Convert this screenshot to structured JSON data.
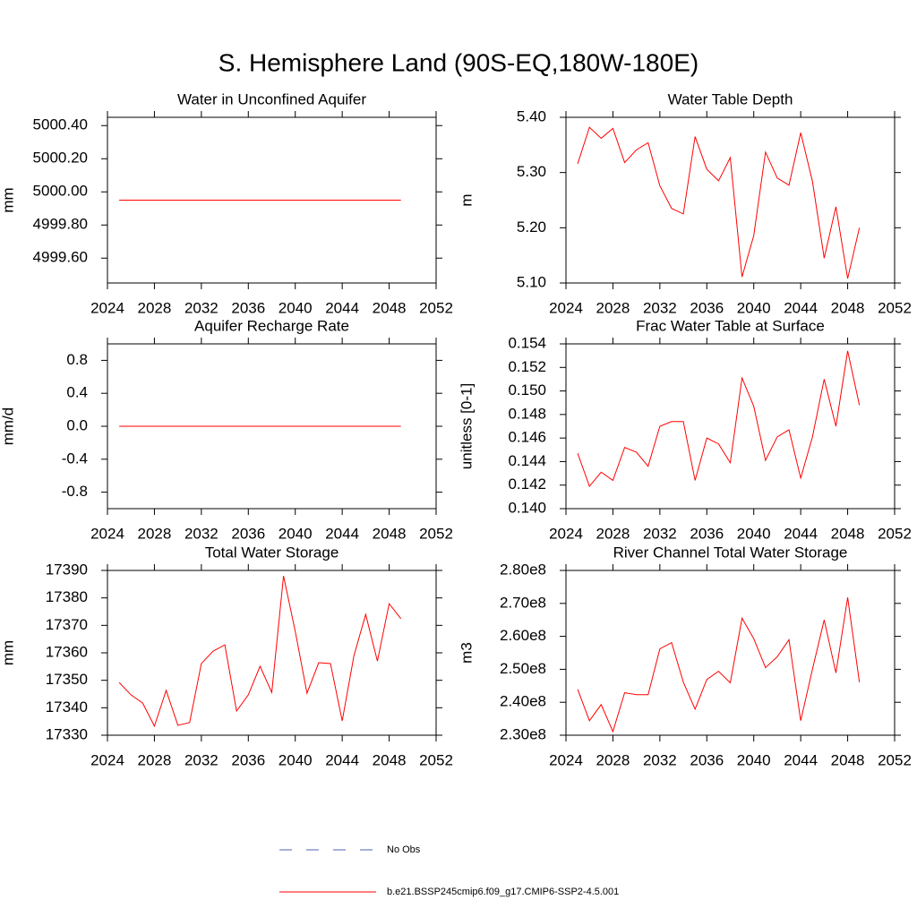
{
  "title": "S. Hemisphere Land (90S-EQ,180W-180E)",
  "legend": [
    {
      "name": "No Obs",
      "color": "#4f5fb0",
      "dashed": true
    },
    {
      "name": "b.e21.BSSP245cmip6.f09_g17.CMIP6-SSP2-4.5.001",
      "color": "#ff0000",
      "dashed": false
    }
  ],
  "chart_data": [
    {
      "type": "line",
      "title": "Water in Unconfined Aquifer",
      "y_label": "mm",
      "x": [
        2025,
        2026,
        2027,
        2028,
        2029,
        2030,
        2031,
        2032,
        2033,
        2034,
        2035,
        2036,
        2037,
        2038,
        2039,
        2040,
        2041,
        2042,
        2043,
        2044,
        2045,
        2046,
        2047,
        2048,
        2049
      ],
      "series": [
        {
          "color": "#ff0000",
          "values": [
            4999.95,
            4999.95,
            4999.95,
            4999.95,
            4999.95,
            4999.95,
            4999.95,
            4999.95,
            4999.95,
            4999.95,
            4999.95,
            4999.95,
            4999.95,
            4999.95,
            4999.95,
            4999.95,
            4999.95,
            4999.95,
            4999.95,
            4999.95,
            4999.95,
            4999.95,
            4999.95,
            4999.95,
            4999.95
          ]
        }
      ],
      "xlim": [
        2024,
        2052
      ],
      "xticks": [
        2024,
        2028,
        2032,
        2036,
        2040,
        2044,
        2048,
        2052
      ],
      "ylim": [
        4999.45,
        5000.45
      ],
      "yticks": [
        {
          "value": 4999.6,
          "label": "4999.60"
        },
        {
          "value": 4999.8,
          "label": "4999.80"
        },
        {
          "value": 5000.0,
          "label": "5000.00"
        },
        {
          "value": 5000.2,
          "label": "5000.20"
        },
        {
          "value": 5000.4,
          "label": "5000.40"
        }
      ]
    },
    {
      "type": "line",
      "title": "Water Table Depth",
      "y_label": "m",
      "x": [
        2025,
        2026,
        2027,
        2028,
        2029,
        2030,
        2031,
        2032,
        2033,
        2034,
        2035,
        2036,
        2037,
        2038,
        2039,
        2040,
        2041,
        2042,
        2043,
        2044,
        2045,
        2046,
        2047,
        2048,
        2049
      ],
      "series": [
        {
          "color": "#ff0000",
          "values": [
            5.316,
            5.382,
            5.362,
            5.38,
            5.318,
            5.341,
            5.354,
            5.276,
            5.235,
            5.225,
            5.365,
            5.306,
            5.285,
            5.327,
            5.111,
            5.186,
            5.337,
            5.29,
            5.277,
            5.372,
            5.284,
            5.145,
            5.238,
            5.108,
            5.2
          ]
        }
      ],
      "xlim": [
        2024,
        2052
      ],
      "xticks": [
        2024,
        2028,
        2032,
        2036,
        2040,
        2044,
        2048,
        2052
      ],
      "ylim": [
        5.1,
        5.4
      ],
      "yticks": [
        {
          "value": 5.1,
          "label": "5.10"
        },
        {
          "value": 5.2,
          "label": "5.20"
        },
        {
          "value": 5.3,
          "label": "5.30"
        },
        {
          "value": 5.4,
          "label": "5.40"
        }
      ]
    },
    {
      "type": "line",
      "title": "Aquifer Recharge Rate",
      "y_label": "mm/d",
      "x": [
        2025,
        2026,
        2027,
        2028,
        2029,
        2030,
        2031,
        2032,
        2033,
        2034,
        2035,
        2036,
        2037,
        2038,
        2039,
        2040,
        2041,
        2042,
        2043,
        2044,
        2045,
        2046,
        2047,
        2048,
        2049
      ],
      "series": [
        {
          "color": "#ff0000",
          "values": [
            0,
            0,
            0,
            0,
            0,
            0,
            0,
            0,
            0,
            0,
            0,
            0,
            0,
            0,
            0,
            0,
            0,
            0,
            0,
            0,
            0,
            0,
            0,
            0,
            0
          ]
        }
      ],
      "xlim": [
        2024,
        2052
      ],
      "xticks": [
        2024,
        2028,
        2032,
        2036,
        2040,
        2044,
        2048,
        2052
      ],
      "ylim": [
        -1,
        1
      ],
      "yticks": [
        -0.8,
        -0.4,
        {
          "value": 0,
          "label": "0.0"
        },
        0.4,
        0.8
      ]
    },
    {
      "type": "line",
      "title": "Frac Water Table at Surface",
      "y_label": "unitless [0-1]",
      "x": [
        2025,
        2026,
        2027,
        2028,
        2029,
        2030,
        2031,
        2032,
        2033,
        2034,
        2035,
        2036,
        2037,
        2038,
        2039,
        2040,
        2041,
        2042,
        2043,
        2044,
        2045,
        2046,
        2047,
        2048,
        2049
      ],
      "series": [
        {
          "color": "#ff0000",
          "values": [
            0.1447,
            0.1419,
            0.1431,
            0.1424,
            0.1452,
            0.1448,
            0.1436,
            0.147,
            0.1474,
            0.1474,
            0.1424,
            0.146,
            0.1455,
            0.1439,
            0.1511,
            0.1487,
            0.1441,
            0.1461,
            0.1467,
            0.1426,
            0.1461,
            0.151,
            0.147,
            0.1534,
            0.1488
          ]
        }
      ],
      "xlim": [
        2024,
        2052
      ],
      "xticks": [
        2024,
        2028,
        2032,
        2036,
        2040,
        2044,
        2048,
        2052
      ],
      "ylim": [
        0.14,
        0.154
      ],
      "yticks": [
        {
          "value": 0.14,
          "label": "0.140"
        },
        0.142,
        0.144,
        0.146,
        0.148,
        {
          "value": 0.15,
          "label": "0.150"
        },
        0.152,
        0.154
      ]
    },
    {
      "type": "line",
      "title": "Total Water Storage",
      "y_label": "mm",
      "x": [
        2025,
        2026,
        2027,
        2028,
        2029,
        2030,
        2031,
        2032,
        2033,
        2034,
        2035,
        2036,
        2037,
        2038,
        2039,
        2040,
        2041,
        2042,
        2043,
        2044,
        2045,
        2046,
        2047,
        2048,
        2049
      ],
      "series": [
        {
          "color": "#ff0000",
          "values": [
            17349.2,
            17344.7,
            17341.7,
            17333.3,
            17346.3,
            17333.6,
            17334.6,
            17356.1,
            17360.6,
            17362.9,
            17338.8,
            17344.7,
            17355.1,
            17345.6,
            17388.0,
            17367.8,
            17345.3,
            17356.4,
            17356.1,
            17335.2,
            17359.0,
            17374.0,
            17357.0,
            17377.9,
            17372.4
          ]
        }
      ],
      "xlim": [
        2024,
        2052
      ],
      "xticks": [
        2024,
        2028,
        2032,
        2036,
        2040,
        2044,
        2048,
        2052
      ],
      "ylim": [
        17330,
        17390
      ],
      "yticks": [
        17330,
        17340,
        17350,
        17360,
        17370,
        17380,
        17390
      ]
    },
    {
      "type": "line",
      "title": "River Channel Total Water Storage",
      "y_label": "m3",
      "x": [
        2025,
        2026,
        2027,
        2028,
        2029,
        2030,
        2031,
        2032,
        2033,
        2034,
        2035,
        2036,
        2037,
        2038,
        2039,
        2040,
        2041,
        2042,
        2043,
        2044,
        2045,
        2046,
        2047,
        2048,
        2049
      ],
      "series": [
        {
          "color": "#ff0000",
          "values": [
            243900000,
            234400000,
            239300000,
            231100000,
            242900000,
            242300000,
            242300000,
            256200000,
            258100000,
            246100000,
            237900000,
            246900000,
            249400000,
            245900000,
            265500000,
            259300000,
            250500000,
            253800000,
            259000000,
            234400000,
            250000000,
            265000000,
            248900000,
            271800000,
            246100000
          ]
        }
      ],
      "xlim": [
        2024,
        2052
      ],
      "xticks": [
        2024,
        2028,
        2032,
        2036,
        2040,
        2044,
        2048,
        2052
      ],
      "ylim": [
        230000000,
        280000000
      ],
      "yticks": [
        {
          "value": 230000000,
          "label": "2.30e8"
        },
        {
          "value": 240000000,
          "label": "2.40e8"
        },
        {
          "value": 250000000,
          "label": "2.50e8"
        },
        {
          "value": 260000000,
          "label": "2.60e8"
        },
        {
          "value": 270000000,
          "label": "2.70e8"
        },
        {
          "value": 280000000,
          "label": "2.80e8"
        }
      ]
    }
  ]
}
